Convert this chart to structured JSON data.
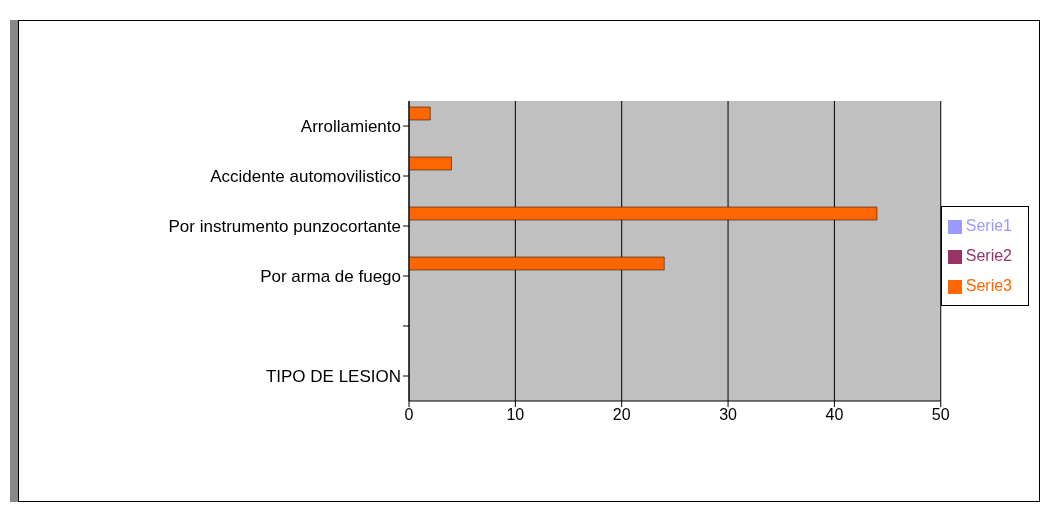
{
  "chart_data": {
    "type": "bar",
    "orientation": "horizontal",
    "categories": [
      "Arrollamiento",
      "Accidente automovilistico",
      "Por instrumento punzocortante",
      "Por arma de fuego",
      null,
      "TIPO DE LESION"
    ],
    "series": [
      {
        "name": "Serie3",
        "color": "#ff6600",
        "values": [
          2,
          4,
          44,
          24,
          null,
          null
        ]
      },
      {
        "name": "Serie2",
        "color": "#993366",
        "values": [
          null,
          null,
          null,
          null,
          null,
          null
        ]
      },
      {
        "name": "Serie1",
        "color": "#9999ff",
        "values": [
          null,
          null,
          null,
          null,
          null,
          null
        ]
      }
    ],
    "xlim": [
      0,
      50
    ],
    "xticks": [
      0,
      10,
      20,
      30,
      40,
      50
    ],
    "grid": "x",
    "legend": "right"
  }
}
